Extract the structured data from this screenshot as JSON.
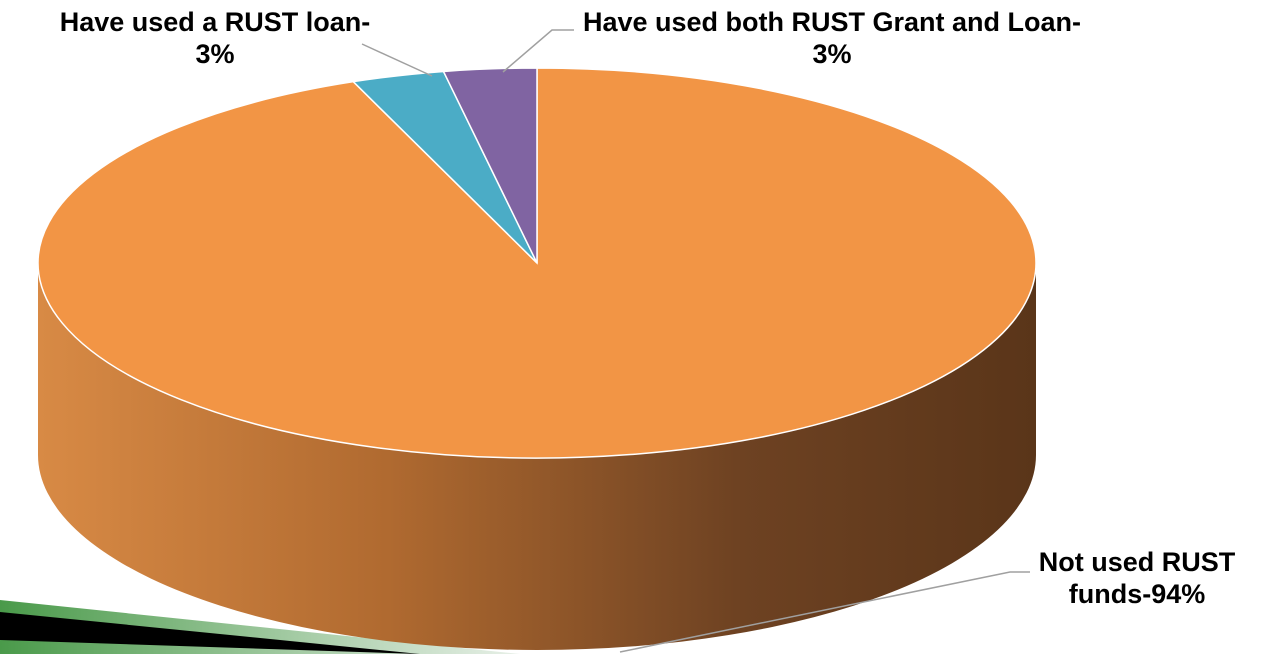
{
  "chart_data": {
    "type": "pie3d",
    "categories": [
      "Not used RUST funds-",
      "Have used a RUST loan-",
      "Have used both RUST Grant and Loan-"
    ],
    "values": [
      94,
      3,
      3
    ],
    "value_labels": [
      "94%",
      "3%",
      "3%"
    ],
    "colors": [
      "#f29545",
      "#4bacc6",
      "#8064a2"
    ]
  }
}
